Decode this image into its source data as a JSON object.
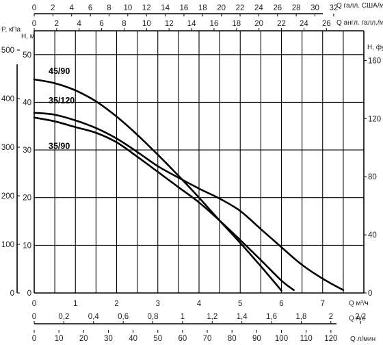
{
  "chart_data": {
    "type": "line",
    "title": "",
    "grid": true,
    "x_main": {
      "label": "Q м³/ч",
      "ticks": [
        "0",
        "1",
        "2",
        "3",
        "4",
        "5",
        "6",
        "7"
      ],
      "range": [
        0,
        8
      ],
      "minor_grid_step": 0.5
    },
    "y_main": {
      "label": "H, м",
      "ticks": [
        "0",
        "10",
        "20",
        "30",
        "40",
        "50"
      ],
      "range": [
        0,
        55
      ]
    },
    "y_left_outer": {
      "label": "P, кПа",
      "ticks": [
        "0",
        "100",
        "200",
        "300",
        "400",
        "500"
      ],
      "values": [
        0,
        100,
        200,
        300,
        400,
        500
      ]
    },
    "y_right": {
      "label": "H, футы",
      "ticks": [
        "0",
        "40",
        "80",
        "120",
        "160"
      ],
      "values": [
        0,
        40,
        80,
        120,
        160
      ]
    },
    "x_top_us": {
      "label": "Q галл. США/мин",
      "ticks": [
        "0",
        "2",
        "4",
        "6",
        "8",
        "10",
        "12",
        "14",
        "16",
        "18",
        "20",
        "22",
        "24",
        "26",
        "28",
        "30",
        "32"
      ],
      "values": [
        0,
        2,
        4,
        6,
        8,
        10,
        12,
        14,
        16,
        18,
        20,
        22,
        24,
        26,
        28,
        30,
        32
      ]
    },
    "x_top_uk": {
      "label": "Q англ. галл./мин",
      "ticks": [
        "0",
        "2",
        "4",
        "6",
        "8",
        "10",
        "12",
        "14",
        "16",
        "18",
        "20",
        "22",
        "24",
        "26"
      ],
      "values": [
        0,
        2,
        4,
        6,
        8,
        10,
        12,
        14,
        16,
        18,
        20,
        22,
        24,
        26
      ]
    },
    "x_bottom_ls": {
      "label": "Q л/с",
      "ticks": [
        "0",
        "0,2",
        "0,4",
        "0,6",
        "0,8",
        "1",
        "1,2",
        "1,4",
        "1,6",
        "1,8",
        "2",
        "2,2"
      ],
      "values": [
        0,
        0.2,
        0.4,
        0.6,
        0.8,
        1.0,
        1.2,
        1.4,
        1.6,
        1.8,
        2.0,
        2.2
      ]
    },
    "x_bottom_lmin": {
      "label": "Q л/мин",
      "ticks": [
        "0",
        "10",
        "20",
        "30",
        "40",
        "50",
        "60",
        "70",
        "80",
        "90",
        "100",
        "110",
        "120"
      ],
      "values": [
        0,
        10,
        20,
        30,
        40,
        50,
        60,
        70,
        80,
        90,
        100,
        110,
        120
      ]
    },
    "series": [
      {
        "name": "45/90",
        "x": [
          0,
          0.5,
          1,
          1.5,
          2,
          2.5,
          3,
          3.5,
          4,
          4.5,
          5,
          5.5,
          6
        ],
        "y": [
          44.8,
          44.0,
          42.5,
          40.2,
          37.0,
          33.2,
          29.0,
          24.6,
          20.0,
          15.2,
          10.5,
          5.6,
          0.5
        ]
      },
      {
        "name": "35/120",
        "x": [
          0,
          0.5,
          1,
          1.5,
          2,
          2.5,
          3,
          3.5,
          4,
          4.5,
          5,
          5.5,
          6,
          6.5,
          7,
          7.5
        ],
        "y": [
          37.8,
          37.4,
          36.2,
          34.6,
          32.4,
          29.6,
          26.6,
          24.2,
          21.9,
          19.8,
          17.2,
          13.4,
          9.6,
          5.9,
          3.0,
          0.6
        ]
      },
      {
        "name": "35/90",
        "x": [
          0,
          0.5,
          1,
          1.5,
          2,
          2.5,
          3,
          3.5,
          4,
          4.5,
          5,
          5.5,
          6,
          6.3
        ],
        "y": [
          36.8,
          36.0,
          34.8,
          33.6,
          31.6,
          28.6,
          25.4,
          22.2,
          19.0,
          15.2,
          11.1,
          6.9,
          2.6,
          0.6
        ]
      }
    ]
  }
}
